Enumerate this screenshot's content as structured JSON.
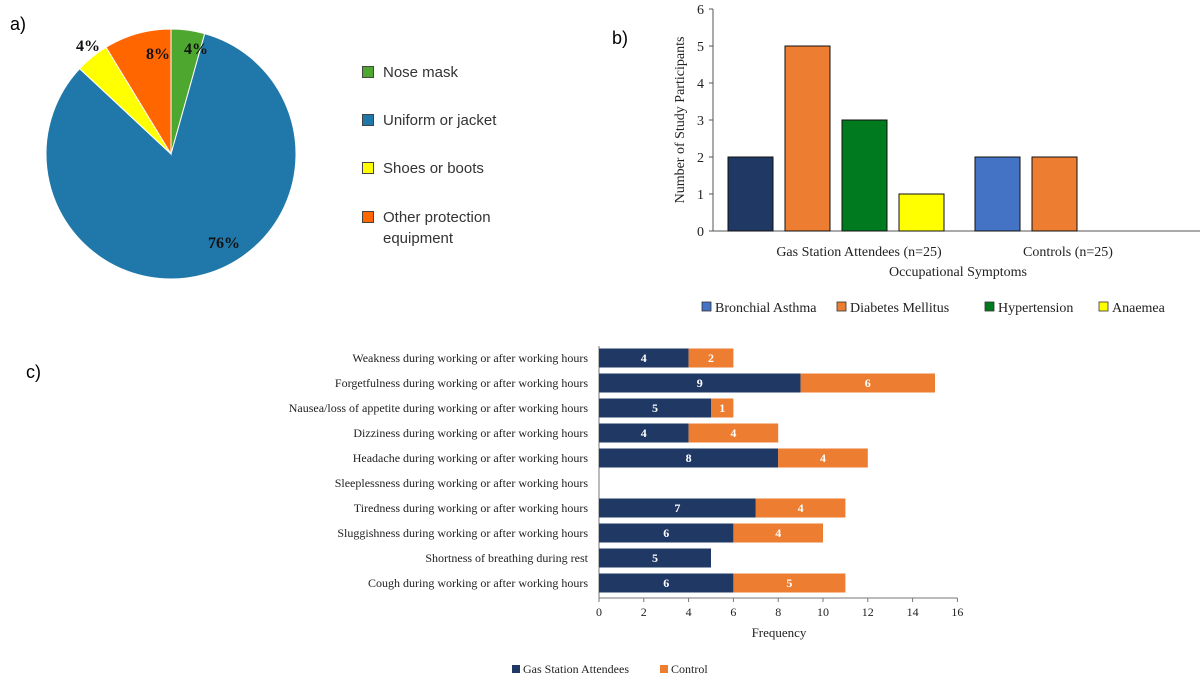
{
  "panels": {
    "a": "a)",
    "b": "b)",
    "c": "c)"
  },
  "chart_data": [
    {
      "type": "pie",
      "labels": [
        "Nose mask",
        "Uniform or jacket",
        "Shoes or boots",
        "Other protection equipment"
      ],
      "values": [
        4,
        76,
        4,
        8
      ],
      "value_labels": [
        "4%",
        "76%",
        "4%",
        "8%"
      ],
      "colors": [
        "#4ea72e",
        "#2077a9",
        "#ffff00",
        "#ff6600"
      ],
      "legend_lines": [
        [
          "Nose mask"
        ],
        [
          "Uniform or jacket"
        ],
        [
          "Shoes or boots"
        ],
        [
          "Other protection",
          "equipment"
        ]
      ]
    },
    {
      "type": "bar",
      "categories": [
        "Gas Station Attendees (n=25)",
        "Controls (n=25)"
      ],
      "series": [
        {
          "name": "Bronchial Asthma",
          "values": [
            2,
            2
          ],
          "colors": [
            "#1f3864",
            "#4472c4"
          ]
        },
        {
          "name": "Diabetes Mellitus",
          "values": [
            5,
            2
          ],
          "color": "#ed7d31"
        },
        {
          "name": "Hypertension",
          "values": [
            3,
            null
          ],
          "color": "#007a1e"
        },
        {
          "name": "Anaemea",
          "values": [
            1,
            null
          ],
          "color": "#ffff00"
        }
      ],
      "legend_colors": [
        "#4472c4",
        "#ed7d31",
        "#007a1e",
        "#ffff00"
      ],
      "xlabel": "Occupational Symptoms",
      "ylabel": "Number of Study Participants",
      "ylim": [
        0,
        6
      ],
      "yticks": [
        0,
        1,
        2,
        3,
        4,
        5,
        6
      ]
    },
    {
      "type": "bar",
      "orientation": "horizontal",
      "stacked": true,
      "categories": [
        "Weakness during working or after working hours",
        "Forgetfulness during working or after working hours",
        "Nausea/loss of appetite during working or after working hours",
        "Dizziness during working or after working hours",
        "Headache during working or after working hours",
        "Sleeplessness during working or after working hours",
        "Tiredness during working or after working hours",
        "Sluggishness during working or after working hours",
        "Shortness of breathing during rest",
        "Cough during working or after working hours"
      ],
      "series": [
        {
          "name": "Gas Station Attendees",
          "values": [
            4,
            9,
            5,
            4,
            8,
            0,
            7,
            6,
            5,
            6
          ],
          "color": "#203864"
        },
        {
          "name": "Control",
          "values": [
            2,
            6,
            1,
            4,
            4,
            0,
            4,
            4,
            0,
            5
          ],
          "color": "#ed7d31"
        }
      ],
      "xlabel": "Frequency",
      "xlim": [
        0,
        16
      ],
      "xticks": [
        0,
        2,
        4,
        6,
        8,
        10,
        12,
        14,
        16
      ]
    }
  ]
}
